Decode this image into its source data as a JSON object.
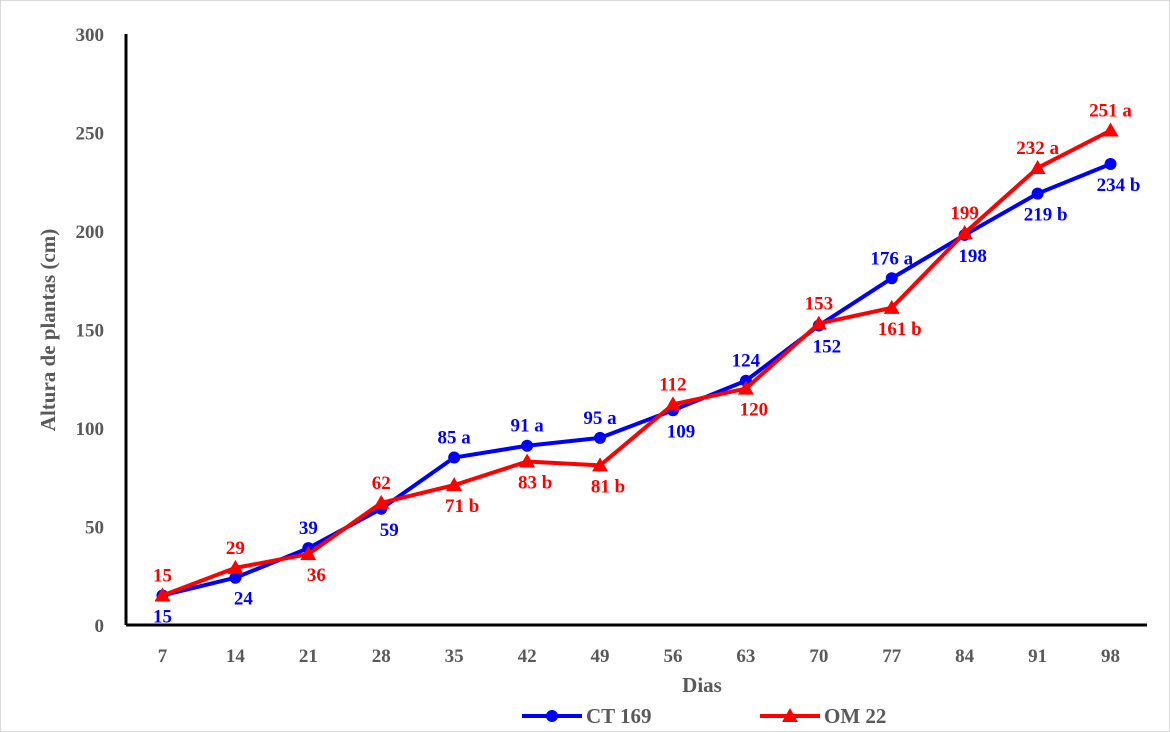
{
  "chart_data": {
    "type": "line",
    "title": "",
    "xlabel": "Dias",
    "ylabel": "Altura de plantas (cm)",
    "ylim": [
      0,
      300
    ],
    "yticks": [
      0,
      50,
      100,
      150,
      200,
      250,
      300
    ],
    "categories": [
      "7",
      "14",
      "21",
      "28",
      "35",
      "42",
      "49",
      "56",
      "63",
      "70",
      "77",
      "84",
      "91",
      "98"
    ],
    "grid": false,
    "legend_position": "bottom",
    "series": [
      {
        "name": "CT 169",
        "color": "#0000ff",
        "marker": "circle",
        "values": [
          15,
          24,
          39,
          59,
          85,
          91,
          95,
          109,
          124,
          152,
          176,
          198,
          219,
          234
        ],
        "labels": [
          "15",
          "24",
          "39",
          "59",
          "85 a",
          "91 a",
          "95 a",
          "109",
          "124",
          "152",
          "176 a",
          "198",
          "219 b",
          "234 b"
        ],
        "label_side": [
          "below",
          "below",
          "above",
          "below",
          "above",
          "above",
          "above",
          "below",
          "above",
          "below",
          "above",
          "below",
          "below",
          "below"
        ]
      },
      {
        "name": "OM 22",
        "color": "#ff0000",
        "marker": "triangle",
        "values": [
          15,
          29,
          36,
          62,
          71,
          83,
          81,
          112,
          120,
          153,
          161,
          199,
          232,
          251
        ],
        "labels": [
          "15",
          "29",
          "36",
          "62",
          "71 b",
          "83 b",
          "81 b",
          "112",
          "120",
          "153",
          "161 b",
          "199",
          "232 a",
          "251 a"
        ],
        "label_side": [
          "above",
          "above",
          "below",
          "above",
          "below",
          "below",
          "below",
          "above",
          "below",
          "above",
          "below",
          "above",
          "above",
          "above"
        ]
      }
    ]
  }
}
